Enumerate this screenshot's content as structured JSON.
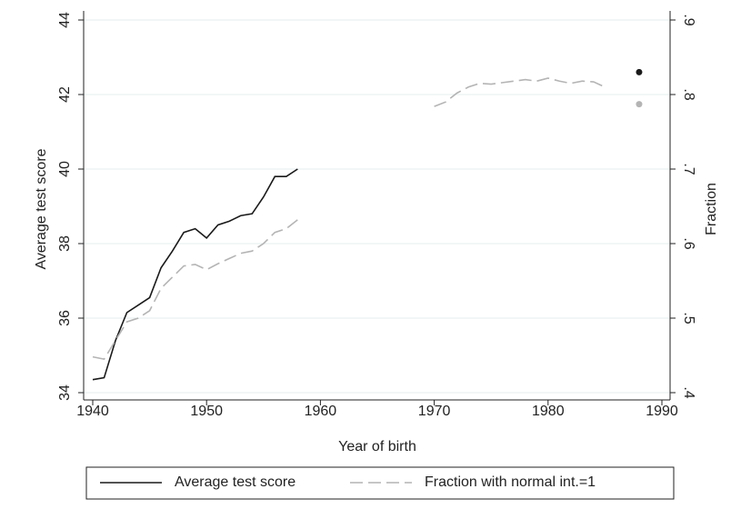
{
  "chart_data": {
    "type": "line",
    "x": [
      1940,
      1941,
      1942,
      1943,
      1944,
      1945,
      1946,
      1947,
      1948,
      1949,
      1950,
      1951,
      1952,
      1953,
      1954,
      1955,
      1956,
      1957,
      1958,
      1959,
      1960,
      1961,
      1962,
      1963,
      1964,
      1965,
      1966,
      1967,
      1968,
      1969,
      1970,
      1971,
      1972,
      1973,
      1974,
      1975,
      1976,
      1977,
      1978,
      1979,
      1980,
      1981,
      1982,
      1983,
      1984,
      1985,
      1986,
      1987,
      1988
    ],
    "series": [
      {
        "name": "Average test score",
        "color": "#1a1a1a",
        "dash": false,
        "values": [
          34.35,
          34.4,
          35.4,
          36.15,
          36.35,
          36.55,
          37.35,
          37.8,
          38.3,
          38.4,
          38.15,
          38.5,
          38.6,
          38.75,
          38.8,
          39.25,
          39.8,
          39.8,
          40.0,
          null,
          null,
          null,
          null,
          null,
          null,
          null,
          null,
          null,
          null,
          null,
          null,
          null,
          null,
          null,
          null,
          null,
          null,
          null,
          null,
          null,
          null,
          null,
          null,
          null,
          null,
          null,
          null,
          null,
          42.6
        ]
      },
      {
        "name": "Fraction with normal int.=1",
        "color": "#b4b4b4",
        "dash": true,
        "axis": "y2",
        "values": [
          0.448,
          0.445,
          0.47,
          0.495,
          0.5,
          0.51,
          0.54,
          0.555,
          0.57,
          0.572,
          0.565,
          0.573,
          0.58,
          0.587,
          0.59,
          0.6,
          0.615,
          0.62,
          0.632,
          null,
          null,
          null,
          null,
          null,
          null,
          null,
          null,
          null,
          null,
          null,
          0.784,
          0.79,
          0.802,
          0.81,
          0.815,
          0.814,
          0.816,
          0.818,
          0.82,
          0.818,
          0.822,
          0.818,
          0.815,
          0.818,
          0.817,
          0.81,
          null,
          null,
          0.787
        ]
      }
    ],
    "xlabel": "Year of birth",
    "ylabel": "Average test score",
    "y2label": "Fraction",
    "xlim": [
      1940,
      1990
    ],
    "xticks": [
      1940,
      1950,
      1960,
      1970,
      1980,
      1990
    ],
    "ylim": [
      34,
      44
    ],
    "yticks": [
      34,
      36,
      38,
      40,
      42,
      44
    ],
    "y2lim": [
      0.4,
      0.9
    ],
    "y2ticks": [
      {
        "value": 0.4,
        "label": ".4"
      },
      {
        "value": 0.5,
        "label": ".5"
      },
      {
        "value": 0.6,
        "label": ".6"
      },
      {
        "value": 0.7,
        "label": ".7"
      },
      {
        "value": 0.8,
        "label": ".8"
      },
      {
        "value": 0.9,
        "label": ".9"
      }
    ],
    "grid": true,
    "legend": "bottom"
  }
}
